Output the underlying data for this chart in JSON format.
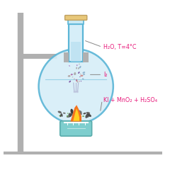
{
  "bg_color": "#ffffff",
  "stand_color": "#b0b0b0",
  "flask_fill": "#d6eef8",
  "flask_edge": "#5ab5d6",
  "neck_fill": "#d6eef8",
  "stopper_fill": "#c8eaf5",
  "stopper_edge": "#5ab5d6",
  "stopper_top_fill": "#e8c87a",
  "label_color": "#e8197a",
  "label_h2o": "H₂O, T=4°C",
  "label_i2": "I₂",
  "label_ki": "KI + MnO₂ + H₂SO₄",
  "flame_orange": "#f47320",
  "flame_yellow": "#ffd020",
  "burner_fill": "#7ecece",
  "burner_edge": "#5aacac",
  "crystal_purple": "#9b59b6",
  "crystal_blue": "#5b9bd5",
  "crystal_grey": "#8e99a0",
  "reagent_dark": "#5a5a5a",
  "reagent_green": "#6aaa5a",
  "water_line": "#5ab5d6",
  "vapor_color": "#aaaacc"
}
